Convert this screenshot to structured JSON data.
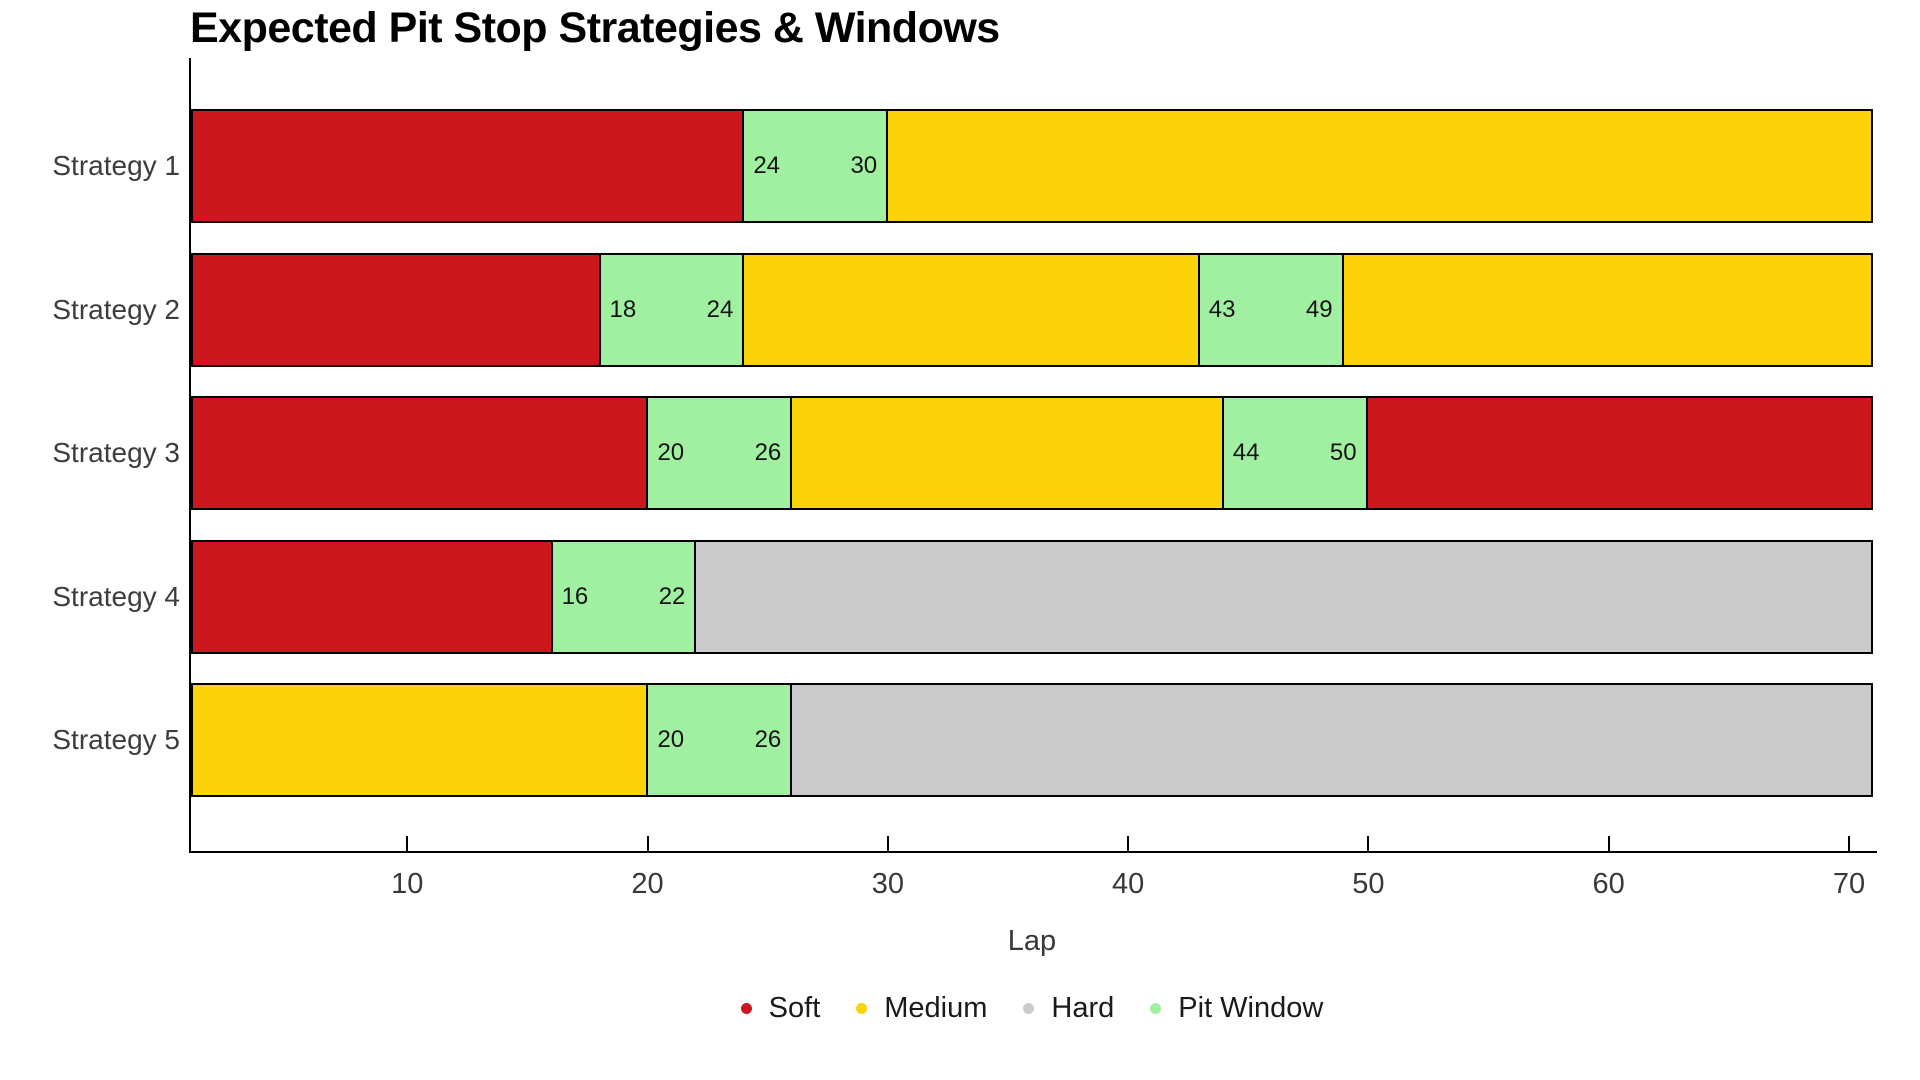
{
  "title": "Expected Pit Stop Strategies & Windows",
  "colors": {
    "soft": "#CC171E",
    "medium": "#FCD20B",
    "hard": "#CBCBCB",
    "pit_window": "#A1F0A1",
    "axis": "#000000",
    "bar_label_text": "#141414",
    "tick_text": "#383838"
  },
  "chart_data": {
    "type": "bar",
    "orientation": "horizontal",
    "stacked": true,
    "title": "Expected Pit Stop Strategies & Windows",
    "xlabel": "Lap",
    "xlim": [
      1,
      71
    ],
    "xticks": [
      10,
      20,
      30,
      40,
      50,
      60,
      70
    ],
    "grid": false,
    "legend_position": "bottom-center",
    "categories": [
      "Strategy 1",
      "Strategy 2",
      "Strategy 3",
      "Strategy 4",
      "Strategy 5"
    ],
    "legend": [
      {
        "key": "soft",
        "label": "Soft"
      },
      {
        "key": "medium",
        "label": "Medium"
      },
      {
        "key": "hard",
        "label": "Hard"
      },
      {
        "key": "pit_window",
        "label": "Pit Window"
      }
    ],
    "rows": [
      {
        "category": "Strategy 1",
        "segments": [
          {
            "compound": "soft",
            "start_lap": 1,
            "end_lap": 24
          },
          {
            "compound": "pit_window",
            "start_lap": 24,
            "end_lap": 30,
            "start_label": "24",
            "end_label": "30"
          },
          {
            "compound": "medium",
            "start_lap": 30,
            "end_lap": 71
          }
        ]
      },
      {
        "category": "Strategy 2",
        "segments": [
          {
            "compound": "soft",
            "start_lap": 1,
            "end_lap": 18
          },
          {
            "compound": "pit_window",
            "start_lap": 18,
            "end_lap": 24,
            "start_label": "18",
            "end_label": "24"
          },
          {
            "compound": "medium",
            "start_lap": 24,
            "end_lap": 43
          },
          {
            "compound": "pit_window",
            "start_lap": 43,
            "end_lap": 49,
            "start_label": "43",
            "end_label": "49"
          },
          {
            "compound": "medium",
            "start_lap": 49,
            "end_lap": 71
          }
        ]
      },
      {
        "category": "Strategy 3",
        "segments": [
          {
            "compound": "soft",
            "start_lap": 1,
            "end_lap": 20
          },
          {
            "compound": "pit_window",
            "start_lap": 20,
            "end_lap": 26,
            "start_label": "20",
            "end_label": "26"
          },
          {
            "compound": "medium",
            "start_lap": 26,
            "end_lap": 44
          },
          {
            "compound": "pit_window",
            "start_lap": 44,
            "end_lap": 50,
            "start_label": "44",
            "end_label": "50"
          },
          {
            "compound": "soft",
            "start_lap": 50,
            "end_lap": 71
          }
        ]
      },
      {
        "category": "Strategy 4",
        "segments": [
          {
            "compound": "soft",
            "start_lap": 1,
            "end_lap": 16
          },
          {
            "compound": "pit_window",
            "start_lap": 16,
            "end_lap": 22,
            "start_label": "16",
            "end_label": "22"
          },
          {
            "compound": "hard",
            "start_lap": 22,
            "end_lap": 71
          }
        ]
      },
      {
        "category": "Strategy 5",
        "segments": [
          {
            "compound": "medium",
            "start_lap": 1,
            "end_lap": 20
          },
          {
            "compound": "pit_window",
            "start_lap": 20,
            "end_lap": 26,
            "start_label": "20",
            "end_label": "26"
          },
          {
            "compound": "hard",
            "start_lap": 26,
            "end_lap": 71
          }
        ]
      }
    ]
  }
}
